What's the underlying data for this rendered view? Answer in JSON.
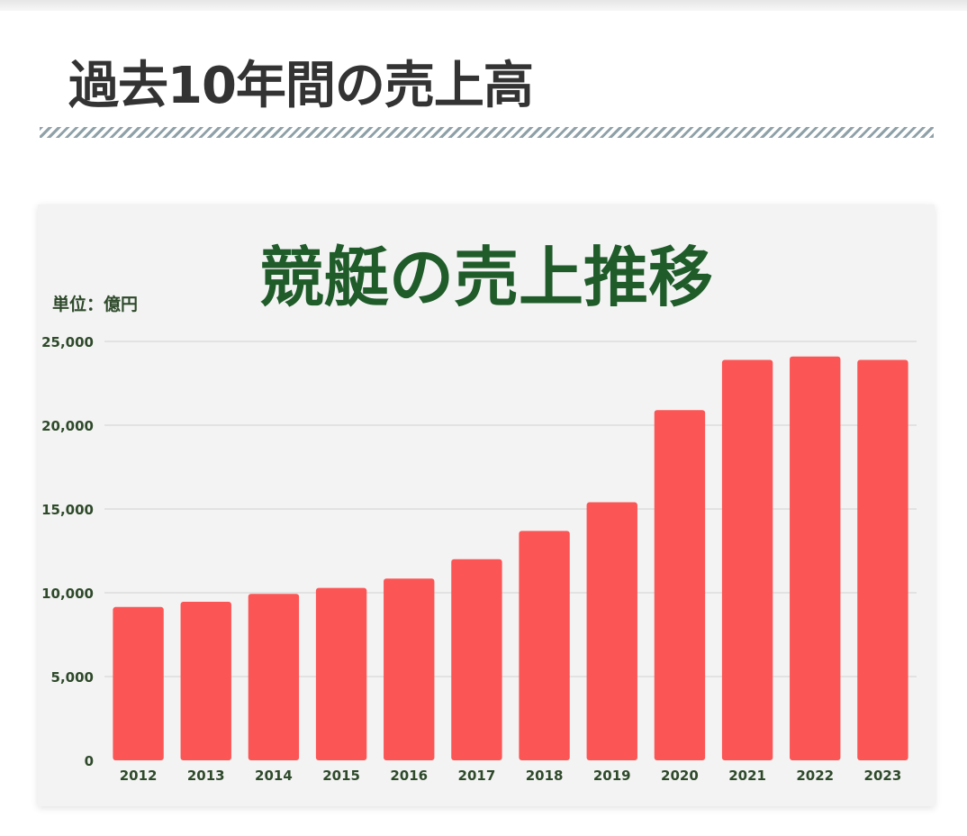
{
  "page": {
    "heading": "過去10年間の売上高"
  },
  "colors": {
    "bar": "#fb5555",
    "title": "#1f5c2a",
    "tick_text": "#2e4a2a",
    "grid": "#dcdcdc",
    "heading": "#333333"
  },
  "chart_data": {
    "type": "bar",
    "title": "競艇の売上推移",
    "unit_label": "単位：億円",
    "categories": [
      "2012",
      "2013",
      "2014",
      "2015",
      "2016",
      "2017",
      "2018",
      "2019",
      "2020",
      "2021",
      "2022",
      "2023"
    ],
    "values": [
      9150,
      9460,
      9930,
      10290,
      10850,
      12000,
      13690,
      15400,
      20900,
      23900,
      24100,
      23900
    ],
    "ylim": [
      0,
      25000
    ],
    "yticks": [
      0,
      5000,
      10000,
      15000,
      20000,
      25000
    ],
    "ytick_labels": [
      "0",
      "5,000",
      "10,000",
      "15,000",
      "20,000",
      "25,000"
    ],
    "grid": true,
    "legend": "none"
  }
}
